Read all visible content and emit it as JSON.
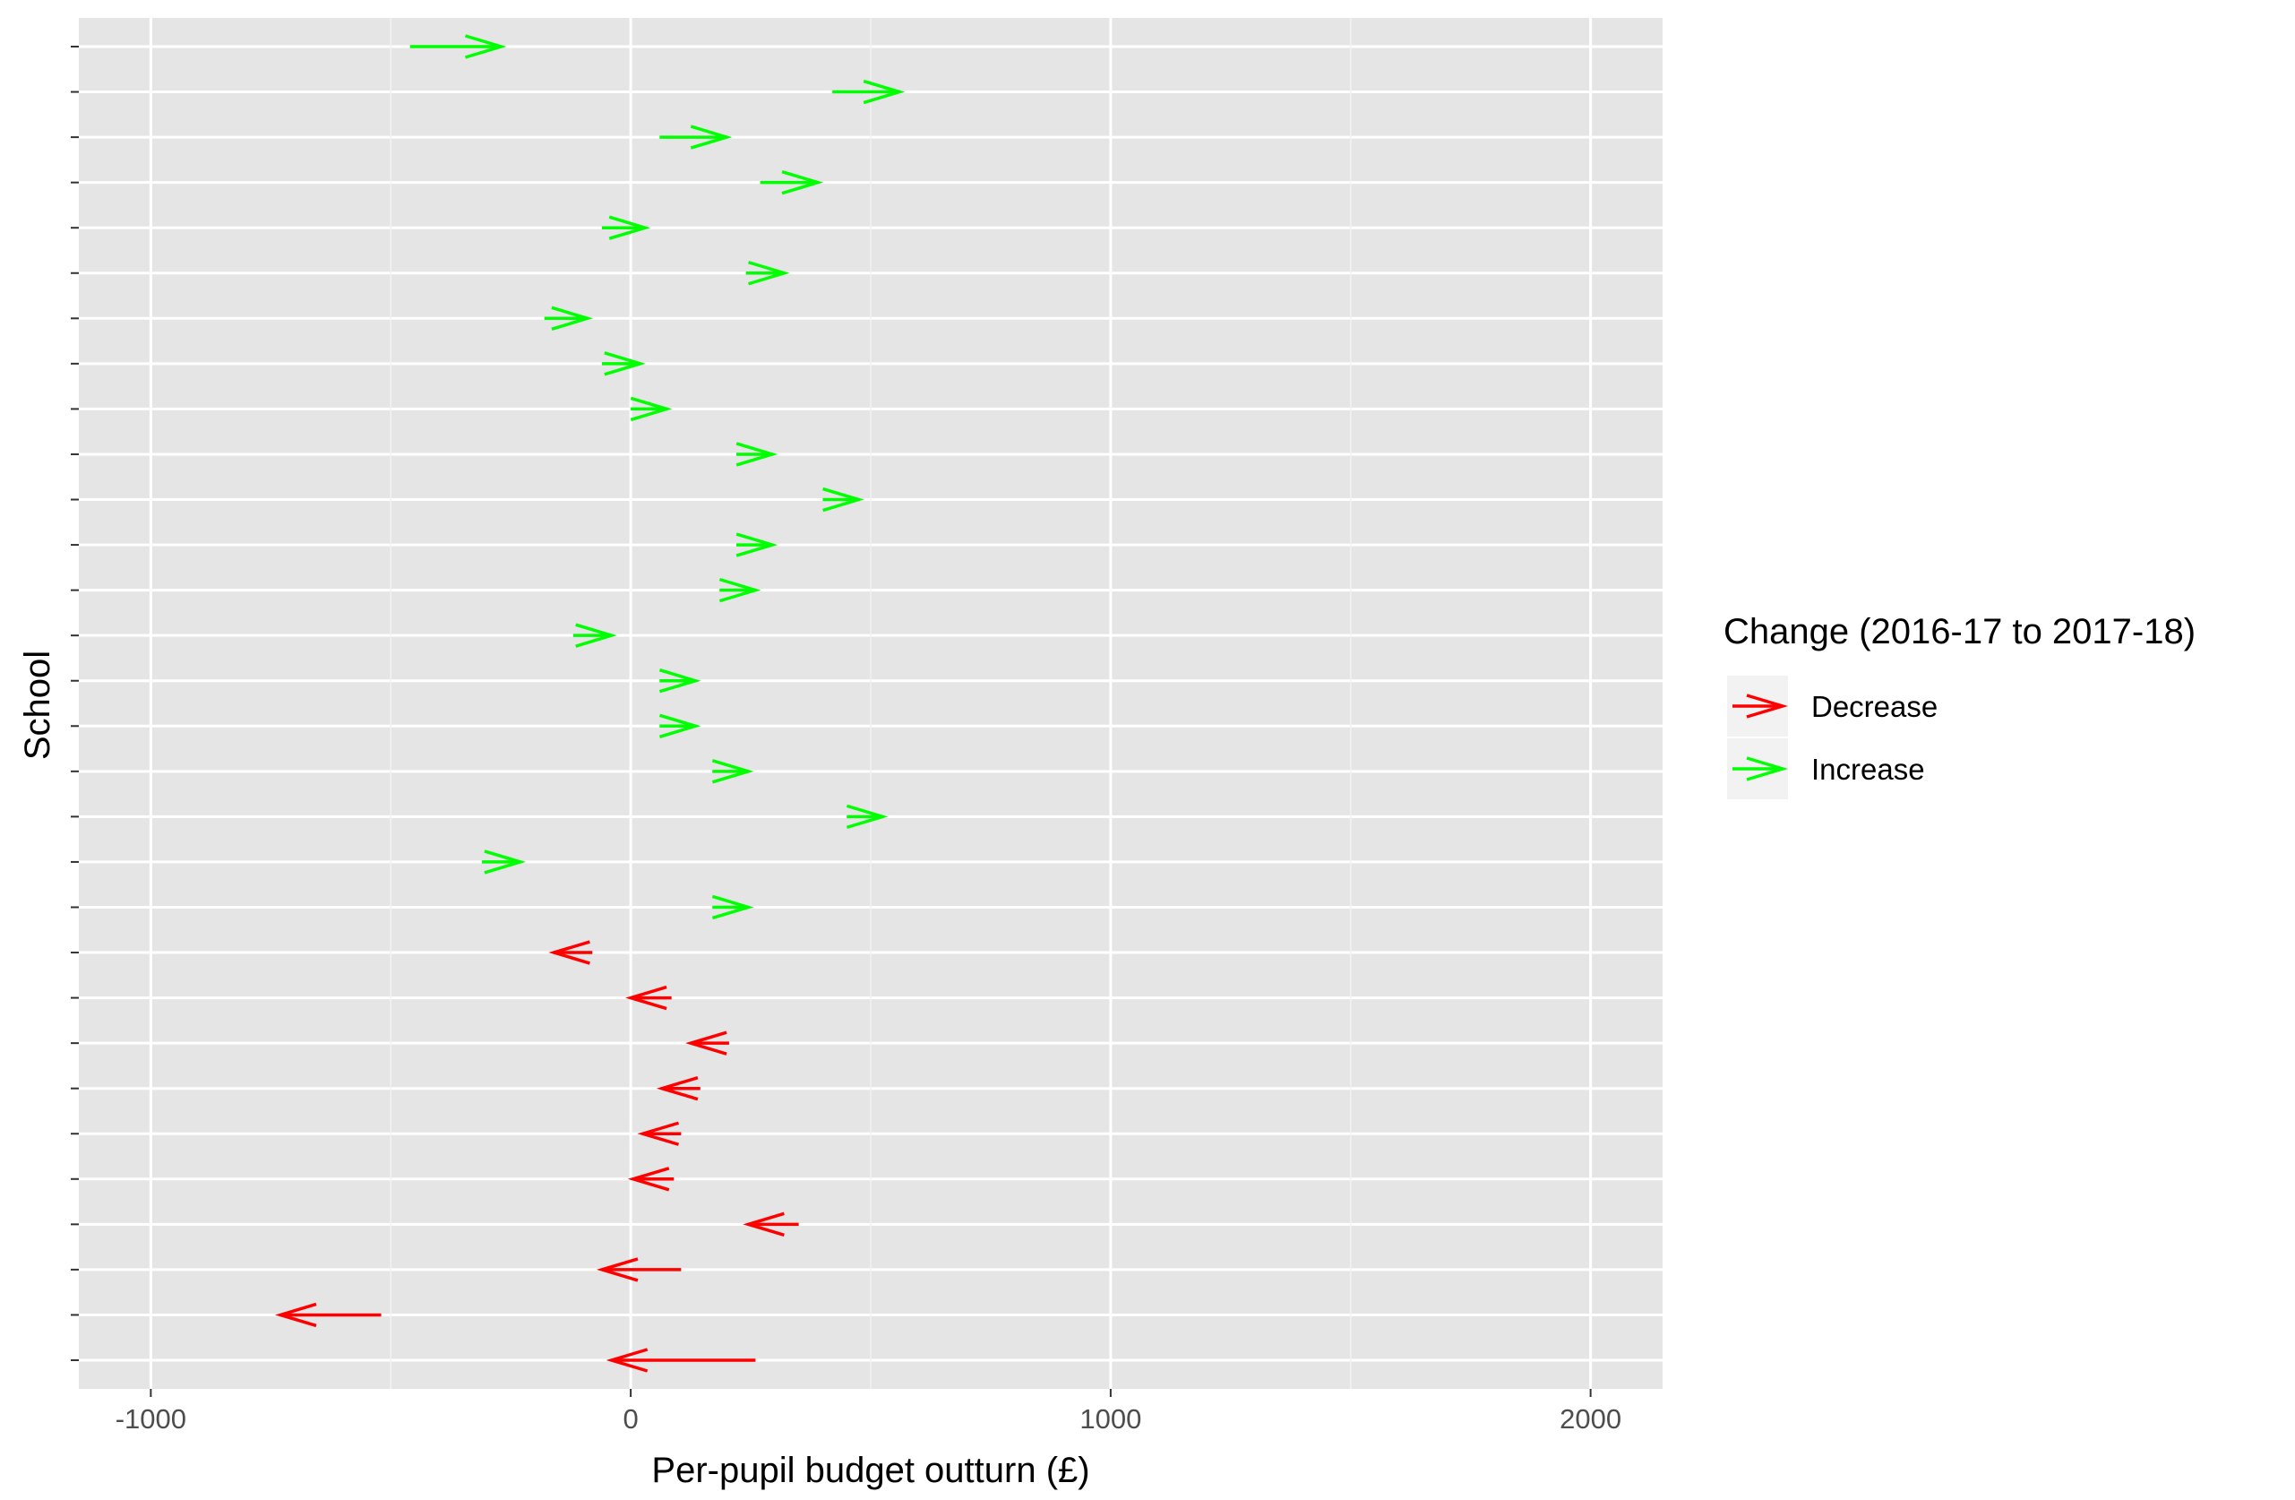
{
  "chart_data": {
    "type": "arrow",
    "xlabel": "Per-pupil budget outturn (£)",
    "ylabel": "School",
    "xlim": [
      -1150,
      2150
    ],
    "xticks": [
      -1000,
      0,
      1000,
      2000
    ],
    "xtick_labels": [
      "-1000",
      "0",
      "1000",
      "2000"
    ],
    "minor_gridlines": [
      -500,
      500,
      1500
    ],
    "grid": true,
    "legend": {
      "title": "Change (2016-17 to 2017-18)",
      "position": "right",
      "entries": [
        {
          "label": "Decrease",
          "color": "#ff0000"
        },
        {
          "label": "Increase",
          "color": "#00ff00"
        }
      ]
    },
    "series": [
      {
        "change": "Increase",
        "color": "#00ff00",
        "arrows": [
          {
            "from": -460,
            "to": -270
          },
          {
            "from": 420,
            "to": 560
          },
          {
            "from": 60,
            "to": 200
          },
          {
            "from": 270,
            "to": 390
          },
          {
            "from": -60,
            "to": 30
          },
          {
            "from": 240,
            "to": 320
          },
          {
            "from": -180,
            "to": -90
          },
          {
            "from": -60,
            "to": 20
          },
          {
            "from": 0,
            "to": 75
          },
          {
            "from": 220,
            "to": 295
          },
          {
            "from": 400,
            "to": 475
          },
          {
            "from": 220,
            "to": 295
          },
          {
            "from": 185,
            "to": 260
          },
          {
            "from": -120,
            "to": -40
          },
          {
            "from": 60,
            "to": 135
          },
          {
            "from": 60,
            "to": 135
          },
          {
            "from": 170,
            "to": 245
          },
          {
            "from": 450,
            "to": 525
          },
          {
            "from": -310,
            "to": -230
          },
          {
            "from": 170,
            "to": 245
          }
        ]
      },
      {
        "change": "Decrease",
        "color": "#ff0000",
        "arrows": [
          {
            "from": -80,
            "to": -160
          },
          {
            "from": 85,
            "to": 0
          },
          {
            "from": 205,
            "to": 125
          },
          {
            "from": 145,
            "to": 65
          },
          {
            "from": 105,
            "to": 25
          },
          {
            "from": 90,
            "to": 5
          },
          {
            "from": 350,
            "to": 245
          },
          {
            "from": 105,
            "to": -60
          },
          {
            "from": -520,
            "to": -730
          },
          {
            "from": 260,
            "to": -40
          }
        ]
      }
    ]
  }
}
